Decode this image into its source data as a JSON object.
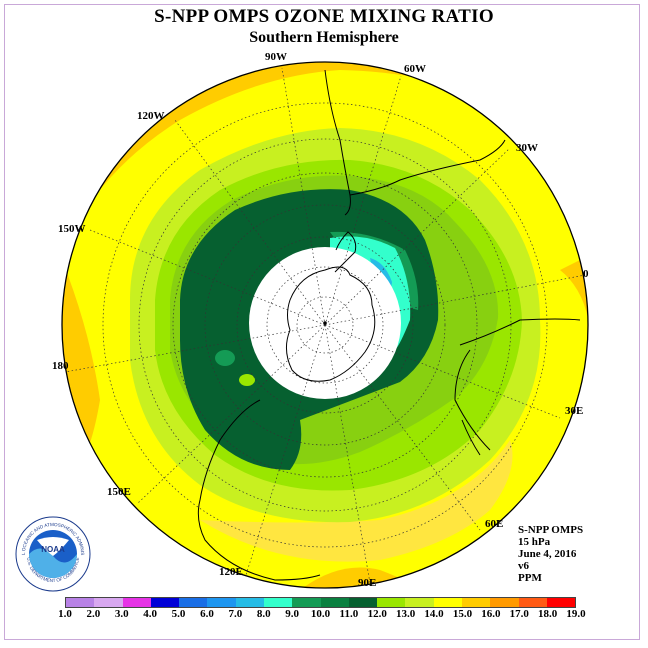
{
  "title": "S-NPP OMPS OZONE MIXING RATIO",
  "subtitle": "Southern Hemisphere",
  "longitude_labels": {
    "lon_90w": "90W",
    "lon_60w": "60W",
    "lon_120w": "120W",
    "lon_30w": "30W",
    "lon_150w": "150W",
    "lon_0": "0",
    "lon_180": "180",
    "lon_30e": "30E",
    "lon_150e": "150E",
    "lon_60e": "60E",
    "lon_120e": "120E",
    "lon_90e": "90E"
  },
  "info": {
    "instrument": "S-NPP OMPS",
    "level": "15 hPa",
    "date": "June 4, 2016",
    "version": "v6",
    "units": "PPM"
  },
  "legend": {
    "ticks": [
      "1.0",
      "2.0",
      "3.0",
      "4.0",
      "5.0",
      "6.0",
      "7.0",
      "8.0",
      "9.0",
      "10.0",
      "11.0",
      "12.0",
      "13.0",
      "14.0",
      "15.0",
      "16.0",
      "17.0",
      "18.0",
      "19.0"
    ],
    "colors": [
      "#b882e6",
      "#d8a8f0",
      "#e633e6",
      "#0000d6",
      "#1a6ee6",
      "#1e96f0",
      "#26bce6",
      "#33ffcc",
      "#149b55",
      "#0a8040",
      "#066030",
      "#9ae600",
      "#c8f020",
      "#ffff00",
      "#ffcc00",
      "#ff9a00",
      "#ff5a14",
      "#ff0000",
      "#8c5a3c"
    ]
  },
  "logo_text": {
    "initials": "NOAA",
    "arc_top": "NATIONAL OCEANIC AND ATMOSPHERIC ADMINISTRATION",
    "arc_bottom": "U.S. DEPARTMENT OF COMMERCE"
  }
}
